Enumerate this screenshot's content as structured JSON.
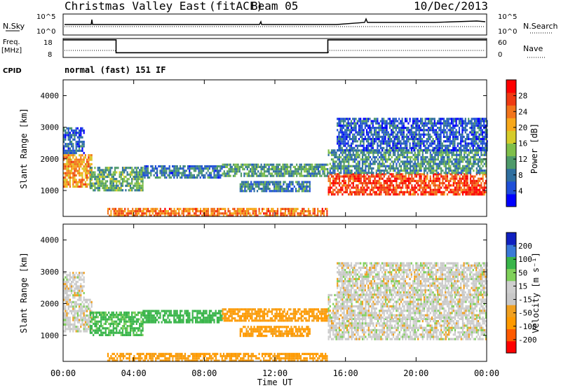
{
  "header": {
    "site": "Christmas Valley East",
    "algorithm": "(fitACF)",
    "beam": "Beam 05",
    "date": "10/Dec/2013"
  },
  "strip_panels": {
    "nsky": {
      "label": "N.Sky",
      "tick_top": "10^5",
      "tick_bottom": "10^0"
    },
    "nsearch": {
      "label": "N.Search",
      "tick_top": "10^5",
      "tick_bottom": "10^0"
    },
    "freq": {
      "label_line1": "Freq.",
      "label_line2": "[MHz]",
      "tick_top": "18",
      "tick_bottom": "8"
    },
    "nave": {
      "label": "Nave",
      "tick_top": "60",
      "tick_bottom": "0"
    },
    "cpid": {
      "label": "CPID",
      "value": "normal (fast) 151 IF"
    }
  },
  "chart_data": [
    {
      "type": "heatmap",
      "name": "power",
      "ylabel": "Slant Range [km]",
      "ylim": [
        180,
        4500
      ],
      "yticks": [
        "1000",
        "2000",
        "3000",
        "4000"
      ],
      "xlim": [
        0,
        24
      ],
      "colorbar": {
        "label": "Power [dB]",
        "ticks": [
          "28",
          "24",
          "20",
          "16",
          "12",
          "8",
          "4"
        ],
        "colors": [
          "#0000ff",
          "#1f4fd8",
          "#2f6f9f",
          "#4e9a6a",
          "#7fbf4a",
          "#d6cc2a",
          "#f7a81b",
          "#f2741b",
          "#ef3a12",
          "#ff0000"
        ]
      },
      "regions": [
        {
          "t0": 0.0,
          "t1": 1.6,
          "r0": 1150,
          "r1": 2150,
          "power": 22
        },
        {
          "t0": 0.0,
          "t1": 1.2,
          "r0": 2200,
          "r1": 3000,
          "power": 6
        },
        {
          "t0": 1.5,
          "t1": 4.5,
          "r0": 1000,
          "r1": 1750,
          "power": 12
        },
        {
          "t0": 4.5,
          "t1": 9.0,
          "r0": 1400,
          "r1": 1800,
          "power": 8
        },
        {
          "t0": 9.0,
          "t1": 15.0,
          "r0": 1450,
          "r1": 1850,
          "power": 11
        },
        {
          "t0": 10.0,
          "t1": 14.0,
          "r0": 1000,
          "r1": 1300,
          "power": 9
        },
        {
          "t0": 2.5,
          "t1": 15.0,
          "r0": 180,
          "r1": 450,
          "power": 24
        },
        {
          "t0": 15.0,
          "t1": 24.0,
          "r0": 900,
          "r1": 1550,
          "power": 27
        },
        {
          "t0": 15.0,
          "t1": 24.0,
          "r0": 1550,
          "r1": 2300,
          "power": 10
        },
        {
          "t0": 15.5,
          "t1": 24.0,
          "r0": 2300,
          "r1": 3300,
          "power": 6
        }
      ]
    },
    {
      "type": "heatmap",
      "name": "velocity",
      "xlabel": "Time UT",
      "ylabel": "Slant Range [km]",
      "ylim": [
        180,
        4500
      ],
      "yticks": [
        "1000",
        "2000",
        "3000",
        "4000"
      ],
      "xlim": [
        0,
        24
      ],
      "xticks": [
        "00:00",
        "04:00",
        "08:00",
        "12:00",
        "16:00",
        "20:00",
        "00:00"
      ],
      "colorbar": {
        "label": "Velocity [m s⁻¹]",
        "ticks": [
          "200",
          "100",
          "50",
          "15",
          "-15",
          "-50",
          "-100",
          "-200"
        ],
        "colors": [
          "#ff0000",
          "#ff5a00",
          "#ff9a00",
          "#f0a020",
          "#c8c8c8",
          "#cfcfcf",
          "#7fd05a",
          "#39b54a",
          "#3a7ad8",
          "#1020c0"
        ]
      },
      "regions": [
        {
          "t0": 0.0,
          "t1": 1.6,
          "r0": 1150,
          "r1": 2150,
          "velocity": 0
        },
        {
          "t0": 0.0,
          "t1": 1.2,
          "r0": 2200,
          "r1": 3000,
          "velocity": 0
        },
        {
          "t0": 1.5,
          "t1": 4.5,
          "r0": 1000,
          "r1": 1750,
          "velocity": 60
        },
        {
          "t0": 4.5,
          "t1": 9.0,
          "r0": 1400,
          "r1": 1800,
          "velocity": 70
        },
        {
          "t0": 9.0,
          "t1": 15.0,
          "r0": 1450,
          "r1": 1850,
          "velocity": -60
        },
        {
          "t0": 10.0,
          "t1": 14.0,
          "r0": 1000,
          "r1": 1300,
          "velocity": -60
        },
        {
          "t0": 2.5,
          "t1": 15.0,
          "r0": 180,
          "r1": 450,
          "velocity": -60
        },
        {
          "t0": 15.0,
          "t1": 24.0,
          "r0": 900,
          "r1": 1550,
          "velocity": 0
        },
        {
          "t0": 15.0,
          "t1": 24.0,
          "r0": 1550,
          "r1": 2300,
          "velocity": 0
        },
        {
          "t0": 15.5,
          "t1": 24.0,
          "r0": 2300,
          "r1": 3300,
          "velocity": 0
        }
      ]
    },
    {
      "type": "line",
      "name": "frequency",
      "ylim": [
        8,
        18
      ],
      "x": [
        0,
        3.0,
        3.0,
        15.0,
        15.0,
        24
      ],
      "values": [
        17.3,
        17.3,
        10.5,
        10.5,
        17.3,
        17.3
      ]
    }
  ]
}
